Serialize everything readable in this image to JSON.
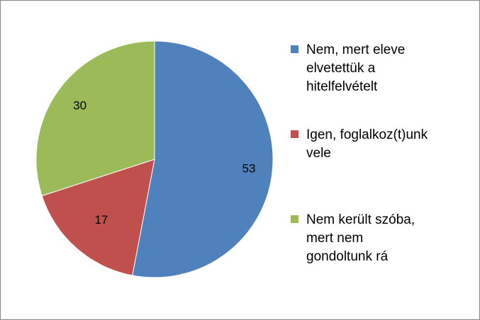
{
  "chart_data": {
    "type": "pie",
    "categories": [
      "Nem, mert eleve\nelvetettük a\nhitelfelvételt",
      "Igen, foglalkoz(t)unk\nvele",
      "Nem került szóba,\nmert nem\ngondoltunk rá"
    ],
    "values": [
      53,
      17,
      30
    ],
    "data_labels": [
      "53",
      "17",
      "30"
    ],
    "colors": [
      "#4f81bd",
      "#c0504d",
      "#9bbb59"
    ],
    "title": "",
    "legend": "right"
  }
}
